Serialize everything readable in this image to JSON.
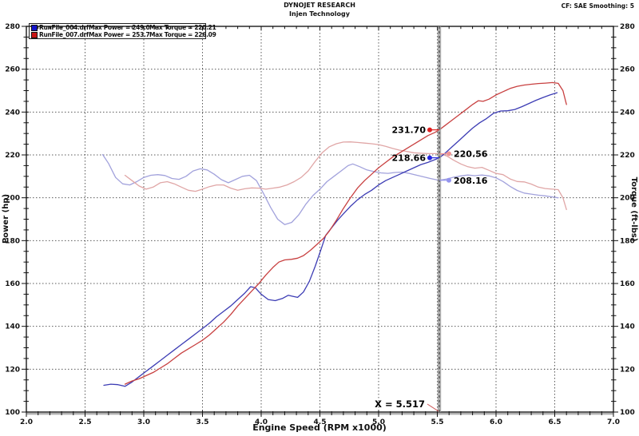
{
  "header": {
    "title": "DYNOJET RESEARCH",
    "subtitle": "Injen Technology",
    "correction": "CF: SAE  Smoothing: 5"
  },
  "legend": {
    "runs": [
      {
        "file": "RunFile_004.drf",
        "max_power_label": "Max Power = 249.03",
        "max_torque_label": "Max Torque = 220.21",
        "color": "#1414c8"
      },
      {
        "file": "RunFile_007.drf",
        "max_power_label": "Max Power = 253.77",
        "max_torque_label": "Max Torque = 226.09",
        "color": "#c81414"
      }
    ]
  },
  "chart_data": {
    "type": "line",
    "title": "DYNOJET RESEARCH - Injen Technology",
    "xlabel": "Engine Speed (RPM x1000)",
    "ylabel_left": "Power (hp)",
    "ylabel_right": "Torque (ft-lbs)",
    "xlim": [
      2.0,
      7.0
    ],
    "ylim": [
      100,
      280
    ],
    "x_major_step": 0.5,
    "x_minor_step": 0.1,
    "y_major_step": 20,
    "y_minor_step": 5,
    "grid": true,
    "legend_position": "top-left",
    "x_tick_labels": [
      "2.0",
      "2.5",
      "3.0",
      "3.5",
      "4.0",
      "4.5",
      "5.0",
      "5.5",
      "6.0",
      "6.5",
      "7.0"
    ],
    "y_tick_labels": [
      "100",
      "120",
      "140",
      "160",
      "180",
      "200",
      "220",
      "240",
      "260",
      "280"
    ],
    "cursor_x": 5.517,
    "cursor_label": "X = 5.517",
    "series": [
      {
        "name": "RunFile_004 Torque",
        "unit": "ft-lbs",
        "color": "#a2a2dc",
        "max": 220.21,
        "points": [
          [
            2.65,
            220.2
          ],
          [
            2.7,
            216
          ],
          [
            2.76,
            209.5
          ],
          [
            2.82,
            206.5
          ],
          [
            2.88,
            206
          ],
          [
            2.94,
            207.5
          ],
          [
            3.0,
            209.5
          ],
          [
            3.06,
            210.5
          ],
          [
            3.12,
            210.8
          ],
          [
            3.18,
            210.4
          ],
          [
            3.24,
            209
          ],
          [
            3.3,
            208.6
          ],
          [
            3.36,
            210
          ],
          [
            3.42,
            212.5
          ],
          [
            3.48,
            213.5
          ],
          [
            3.54,
            213
          ],
          [
            3.6,
            211
          ],
          [
            3.66,
            208.5
          ],
          [
            3.72,
            207
          ],
          [
            3.78,
            208.5
          ],
          [
            3.84,
            210
          ],
          [
            3.9,
            210.5
          ],
          [
            3.96,
            208
          ],
          [
            4.02,
            202
          ],
          [
            4.08,
            195.5
          ],
          [
            4.14,
            190
          ],
          [
            4.2,
            187.5
          ],
          [
            4.26,
            188.5
          ],
          [
            4.32,
            192
          ],
          [
            4.38,
            197
          ],
          [
            4.44,
            201
          ],
          [
            4.5,
            204
          ],
          [
            4.56,
            207.5
          ],
          [
            4.62,
            210
          ],
          [
            4.68,
            212.5
          ],
          [
            4.74,
            215
          ],
          [
            4.78,
            215.8
          ],
          [
            4.84,
            214.5
          ],
          [
            4.9,
            213
          ],
          [
            4.96,
            212.2
          ],
          [
            5.02,
            211.6
          ],
          [
            5.08,
            211.4
          ],
          [
            5.14,
            211.8
          ],
          [
            5.2,
            212
          ],
          [
            5.26,
            211.4
          ],
          [
            5.32,
            210.6
          ],
          [
            5.38,
            209.8
          ],
          [
            5.44,
            209
          ],
          [
            5.5,
            208.3
          ],
          [
            5.517,
            208.16
          ],
          [
            5.58,
            208.8
          ],
          [
            5.64,
            209.6
          ],
          [
            5.7,
            210.2
          ],
          [
            5.76,
            210.6
          ],
          [
            5.82,
            210.3
          ],
          [
            5.88,
            210.6
          ],
          [
            5.94,
            210.2
          ],
          [
            6.0,
            209.3
          ],
          [
            6.06,
            207.6
          ],
          [
            6.12,
            205.3
          ],
          [
            6.18,
            203.4
          ],
          [
            6.24,
            202.2
          ],
          [
            6.3,
            201.7
          ],
          [
            6.36,
            201.2
          ],
          [
            6.42,
            200.9
          ],
          [
            6.48,
            200.4
          ],
          [
            6.53,
            200
          ]
        ]
      },
      {
        "name": "RunFile_007 Torque",
        "unit": "ft-lbs",
        "color": "#e0a6a6",
        "max": 226.09,
        "points": [
          [
            2.84,
            210.5
          ],
          [
            2.9,
            208
          ],
          [
            2.96,
            205.5
          ],
          [
            3.02,
            204
          ],
          [
            3.08,
            205
          ],
          [
            3.14,
            207
          ],
          [
            3.2,
            207.5
          ],
          [
            3.26,
            206.5
          ],
          [
            3.32,
            205
          ],
          [
            3.38,
            203.5
          ],
          [
            3.44,
            203
          ],
          [
            3.5,
            204
          ],
          [
            3.56,
            205.2
          ],
          [
            3.62,
            206
          ],
          [
            3.68,
            206
          ],
          [
            3.74,
            204.5
          ],
          [
            3.8,
            203.5
          ],
          [
            3.86,
            204.2
          ],
          [
            3.92,
            204.6
          ],
          [
            3.98,
            204.5
          ],
          [
            4.04,
            204
          ],
          [
            4.1,
            204.5
          ],
          [
            4.16,
            205
          ],
          [
            4.22,
            206
          ],
          [
            4.28,
            207.5
          ],
          [
            4.34,
            209.5
          ],
          [
            4.4,
            212.5
          ],
          [
            4.46,
            217
          ],
          [
            4.52,
            221
          ],
          [
            4.58,
            223.8
          ],
          [
            4.64,
            225.2
          ],
          [
            4.7,
            226
          ],
          [
            4.76,
            226.09
          ],
          [
            4.82,
            225.8
          ],
          [
            4.88,
            225.5
          ],
          [
            4.94,
            225.2
          ],
          [
            5.0,
            224.8
          ],
          [
            5.06,
            224
          ],
          [
            5.12,
            223
          ],
          [
            5.18,
            222.2
          ],
          [
            5.24,
            221.6
          ],
          [
            5.3,
            221
          ],
          [
            5.36,
            220.8
          ],
          [
            5.42,
            220.6
          ],
          [
            5.48,
            220.6
          ],
          [
            5.517,
            220.56
          ],
          [
            5.58,
            219.5
          ],
          [
            5.64,
            217.5
          ],
          [
            5.7,
            215.8
          ],
          [
            5.76,
            214.5
          ],
          [
            5.82,
            213.8
          ],
          [
            5.88,
            214.2
          ],
          [
            5.94,
            212.8
          ],
          [
            6.0,
            211.4
          ],
          [
            6.06,
            210.8
          ],
          [
            6.12,
            208.8
          ],
          [
            6.18,
            207.6
          ],
          [
            6.24,
            207.4
          ],
          [
            6.3,
            206.4
          ],
          [
            6.36,
            205
          ],
          [
            6.42,
            204.3
          ],
          [
            6.48,
            204
          ],
          [
            6.53,
            203.8
          ],
          [
            6.57,
            200
          ],
          [
            6.6,
            194.5
          ]
        ]
      },
      {
        "name": "RunFile_004 Power",
        "unit": "hp",
        "color": "#3c3cb4",
        "max": 249.03,
        "points": [
          [
            2.66,
            112.5
          ],
          [
            2.72,
            113
          ],
          [
            2.78,
            112.8
          ],
          [
            2.84,
            112
          ],
          [
            2.9,
            114
          ],
          [
            2.96,
            116.5
          ],
          [
            3.02,
            119
          ],
          [
            3.08,
            121.5
          ],
          [
            3.14,
            124
          ],
          [
            3.2,
            126.5
          ],
          [
            3.26,
            129
          ],
          [
            3.32,
            131.5
          ],
          [
            3.38,
            134
          ],
          [
            3.44,
            136.5
          ],
          [
            3.5,
            139
          ],
          [
            3.56,
            141.5
          ],
          [
            3.62,
            144.5
          ],
          [
            3.68,
            147
          ],
          [
            3.74,
            149.5
          ],
          [
            3.8,
            152.5
          ],
          [
            3.86,
            155.5
          ],
          [
            3.91,
            158.5
          ],
          [
            3.95,
            158
          ],
          [
            4.0,
            155
          ],
          [
            4.06,
            152.5
          ],
          [
            4.12,
            152
          ],
          [
            4.18,
            153
          ],
          [
            4.23,
            154.5
          ],
          [
            4.27,
            154
          ],
          [
            4.31,
            153.5
          ],
          [
            4.36,
            156
          ],
          [
            4.41,
            161
          ],
          [
            4.46,
            168
          ],
          [
            4.51,
            176
          ],
          [
            4.55,
            182.5
          ],
          [
            4.6,
            186
          ],
          [
            4.65,
            189.5
          ],
          [
            4.7,
            192.5
          ],
          [
            4.76,
            196
          ],
          [
            4.82,
            199
          ],
          [
            4.88,
            201.5
          ],
          [
            4.94,
            203.5
          ],
          [
            5.0,
            206
          ],
          [
            5.06,
            208
          ],
          [
            5.12,
            209.5
          ],
          [
            5.18,
            211
          ],
          [
            5.24,
            212.5
          ],
          [
            5.3,
            214
          ],
          [
            5.36,
            215.5
          ],
          [
            5.42,
            216.5
          ],
          [
            5.48,
            217.8
          ],
          [
            5.517,
            218.66
          ],
          [
            5.56,
            220.5
          ],
          [
            5.62,
            223.5
          ],
          [
            5.68,
            226.5
          ],
          [
            5.74,
            229.5
          ],
          [
            5.8,
            232.5
          ],
          [
            5.86,
            235
          ],
          [
            5.92,
            237
          ],
          [
            5.98,
            239.5
          ],
          [
            6.04,
            240.5
          ],
          [
            6.1,
            240.6
          ],
          [
            6.16,
            241.2
          ],
          [
            6.22,
            242.5
          ],
          [
            6.28,
            244
          ],
          [
            6.34,
            245.5
          ],
          [
            6.4,
            246.8
          ],
          [
            6.46,
            248
          ],
          [
            6.52,
            249.03
          ]
        ]
      },
      {
        "name": "RunFile_007 Power",
        "unit": "hp",
        "color": "#c84040",
        "max": 253.77,
        "points": [
          [
            2.84,
            113
          ],
          [
            2.9,
            114.5
          ],
          [
            2.96,
            115.5
          ],
          [
            3.02,
            117
          ],
          [
            3.08,
            118.5
          ],
          [
            3.14,
            120.5
          ],
          [
            3.2,
            122.5
          ],
          [
            3.26,
            125
          ],
          [
            3.32,
            127.5
          ],
          [
            3.38,
            129.5
          ],
          [
            3.44,
            131.5
          ],
          [
            3.5,
            133.5
          ],
          [
            3.56,
            136
          ],
          [
            3.62,
            139
          ],
          [
            3.68,
            142
          ],
          [
            3.74,
            145.5
          ],
          [
            3.8,
            149.5
          ],
          [
            3.86,
            153
          ],
          [
            3.92,
            156.5
          ],
          [
            3.98,
            160
          ],
          [
            4.04,
            164
          ],
          [
            4.1,
            167.5
          ],
          [
            4.15,
            170
          ],
          [
            4.2,
            171
          ],
          [
            4.26,
            171.3
          ],
          [
            4.31,
            171.8
          ],
          [
            4.36,
            173
          ],
          [
            4.42,
            175.5
          ],
          [
            4.48,
            178.5
          ],
          [
            4.53,
            181
          ],
          [
            4.58,
            184.5
          ],
          [
            4.64,
            189.5
          ],
          [
            4.7,
            195
          ],
          [
            4.76,
            200
          ],
          [
            4.82,
            204.5
          ],
          [
            4.88,
            208
          ],
          [
            4.94,
            211
          ],
          [
            5.0,
            214
          ],
          [
            5.06,
            216.5
          ],
          [
            5.12,
            219
          ],
          [
            5.18,
            221
          ],
          [
            5.24,
            223
          ],
          [
            5.3,
            225
          ],
          [
            5.36,
            227
          ],
          [
            5.42,
            229
          ],
          [
            5.48,
            230.5
          ],
          [
            5.517,
            231.7
          ],
          [
            5.56,
            233.5
          ],
          [
            5.62,
            236
          ],
          [
            5.68,
            238.5
          ],
          [
            5.74,
            241
          ],
          [
            5.8,
            243.5
          ],
          [
            5.85,
            245.3
          ],
          [
            5.89,
            245
          ],
          [
            5.94,
            246
          ],
          [
            6.0,
            248
          ],
          [
            6.06,
            249.5
          ],
          [
            6.12,
            251
          ],
          [
            6.18,
            252
          ],
          [
            6.24,
            252.6
          ],
          [
            6.3,
            253
          ],
          [
            6.36,
            253.3
          ],
          [
            6.42,
            253.5
          ],
          [
            6.48,
            253.77
          ],
          [
            6.53,
            253.4
          ],
          [
            6.57,
            250
          ],
          [
            6.6,
            243.5
          ]
        ]
      }
    ],
    "callouts": [
      {
        "label": "231.70",
        "value": 231.7,
        "side": "left",
        "color": "#e02020"
      },
      {
        "label": "218.66",
        "value": 218.66,
        "side": "left",
        "color": "#2828e0"
      },
      {
        "label": "220.56",
        "value": 220.56,
        "side": "right",
        "color": "#ee9494"
      },
      {
        "label": "208.16",
        "value": 208.16,
        "side": "right",
        "color": "#9494ee"
      }
    ]
  }
}
